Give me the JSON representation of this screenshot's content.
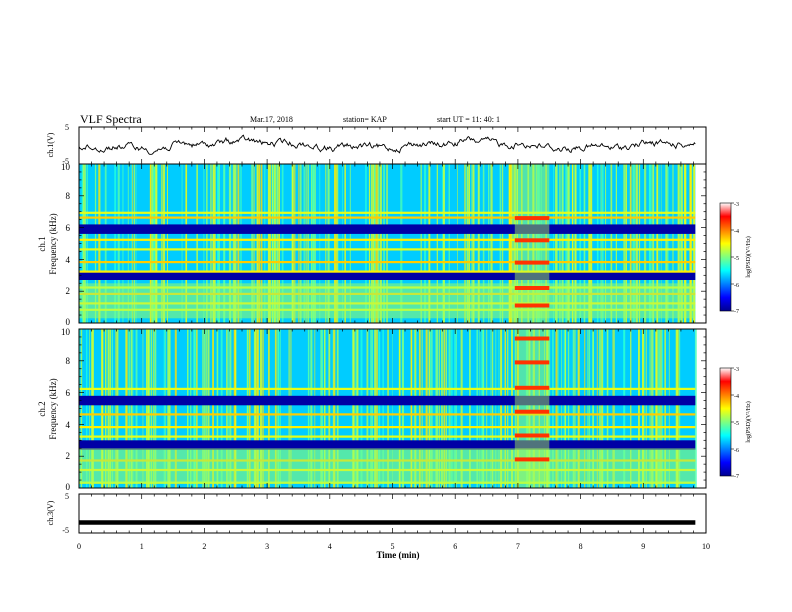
{
  "header": {
    "title": "VLF Spectra",
    "date": "Mar.17, 2018",
    "station": "station= KAP",
    "start": "start  UT  =   11: 40: 1"
  },
  "chart_data": [
    {
      "type": "line",
      "name": "ch1-waveform",
      "ylabel": "ch.1(V)",
      "ylim": [
        -5,
        5
      ],
      "yticks": [
        "5",
        "-5"
      ],
      "xlim": [
        0,
        10
      ]
    },
    {
      "type": "heatmap",
      "name": "ch1-spectrogram",
      "ylabel_top": "ch.1",
      "ylabel": "Frequency  (kHz)",
      "ylim": [
        0,
        10
      ],
      "yticks": [
        "0",
        "2",
        "4",
        "6",
        "8",
        "10"
      ],
      "xlim": [
        0,
        9.83
      ],
      "strong_bands_khz": [
        0.9,
        1.3,
        1.9,
        2.3,
        3.3,
        3.9,
        4.7,
        5.3,
        6.7,
        7.0
      ],
      "dark_bands_khz": [
        3.0,
        5.9
      ],
      "burst_minutes": [
        6.95,
        7.5
      ],
      "burst_bands_khz": [
        1.1,
        2.2,
        3.8,
        5.2,
        6.6
      ],
      "colorbar": {
        "label": "log(PSD)(V²/Hz)",
        "ticks": [
          "-3",
          "-4",
          "-5",
          "-6",
          "-7"
        ],
        "range": [
          -7,
          -3
        ]
      }
    },
    {
      "type": "heatmap",
      "name": "ch2-spectrogram",
      "ylabel_top": "ch.2",
      "ylabel": "Frequency  (kHz)",
      "ylim": [
        0,
        10
      ],
      "yticks": [
        "0",
        "2",
        "4",
        "6",
        "8",
        "10"
      ],
      "xlim": [
        0,
        9.83
      ],
      "strong_bands_khz": [
        0.4,
        1.2,
        1.8,
        3.3,
        3.9,
        4.7,
        6.3
      ],
      "dark_bands_khz": [
        2.7,
        5.5
      ],
      "burst_minutes": [
        6.95,
        7.5
      ],
      "burst_bands_khz": [
        1.8,
        3.3,
        4.8,
        6.3,
        7.9,
        9.4
      ],
      "colorbar": {
        "label": "log(PSD)(V²/Hz)",
        "ticks": [
          "-3",
          "-4",
          "-5",
          "-6",
          "-7"
        ],
        "range": [
          -7,
          -3
        ]
      }
    },
    {
      "type": "line",
      "name": "ch3-trace",
      "ylabel": "ch.3(V)",
      "ylim": [
        -5,
        5
      ],
      "yticks": [
        "5",
        "-5"
      ],
      "xlim": [
        0,
        10
      ],
      "xlabel": "Time  (min)",
      "xticks": [
        "0",
        "1",
        "2",
        "3",
        "4",
        "5",
        "6",
        "7",
        "8",
        "9",
        "10"
      ],
      "x": [
        0,
        9.83
      ],
      "y": [
        -2.3,
        -2.3
      ]
    }
  ]
}
